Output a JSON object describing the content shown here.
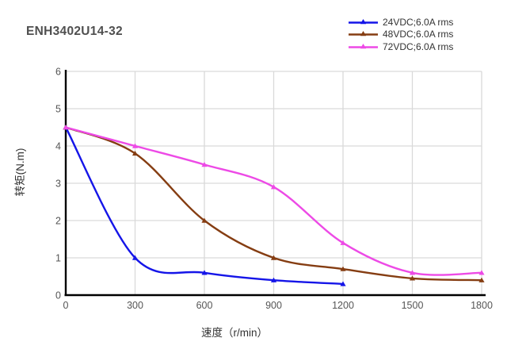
{
  "title": "ENH3402U14-32",
  "legend": {
    "position": "top-right",
    "items": [
      {
        "label": "24VDC;6.0A rms",
        "color": "#1515e8"
      },
      {
        "label": "48VDC;6.0A rms",
        "color": "#853d12"
      },
      {
        "label": "72VDC;6.0A rms",
        "color": "#ed4ae6"
      }
    ]
  },
  "chart_data": {
    "type": "line",
    "title": "ENH3402U14-32",
    "xlabel": "速度（r/min）",
    "ylabel": "转矩(N.m)",
    "xlim": [
      0,
      1800
    ],
    "ylim": [
      0,
      6
    ],
    "x_ticks": [
      "0",
      "300",
      "600",
      "900",
      "1200",
      "1500",
      "1800"
    ],
    "y_ticks": [
      "0",
      "1",
      "2",
      "3",
      "4",
      "5",
      "6"
    ],
    "grid": true,
    "marker": "triangle",
    "legend_position": "top-right",
    "series": [
      {
        "name": "24VDC;6.0A rms",
        "color": "#1515e8",
        "x": [
          0,
          300,
          600,
          900,
          1200
        ],
        "y": [
          4.5,
          1.0,
          0.6,
          0.4,
          0.3
        ]
      },
      {
        "name": "48VDC;6.0A rms",
        "color": "#853d12",
        "x": [
          0,
          300,
          600,
          900,
          1200,
          1500,
          1800
        ],
        "y": [
          4.5,
          3.8,
          2.0,
          1.0,
          0.7,
          0.45,
          0.4
        ]
      },
      {
        "name": "72VDC;6.0A rms",
        "color": "#ed4ae6",
        "x": [
          0,
          300,
          600,
          900,
          1200,
          1500,
          1800
        ],
        "y": [
          4.5,
          4.0,
          3.5,
          2.9,
          1.4,
          0.6,
          0.6
        ]
      }
    ]
  },
  "colors": {
    "grid": "#d9d9d9",
    "axis": "#000000",
    "tick_label": "#555555",
    "title": "#4f4f4f",
    "text": "#333333",
    "background": "#ffffff"
  }
}
